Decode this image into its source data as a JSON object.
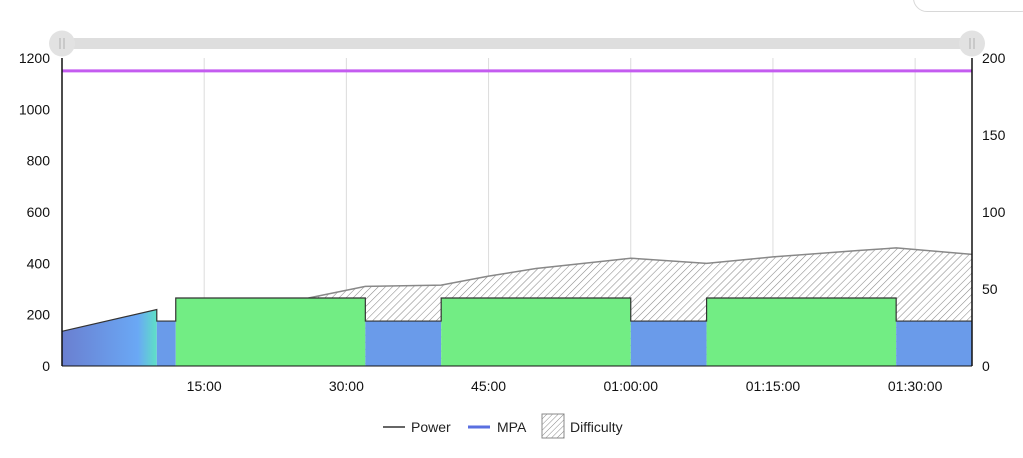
{
  "chart_data": {
    "type": "area",
    "x_unit": "seconds",
    "x_range": [
      0,
      5760
    ],
    "x_ticks": [
      {
        "value": 900,
        "label": "15:00"
      },
      {
        "value": 1800,
        "label": "30:00"
      },
      {
        "value": 2700,
        "label": "45:00"
      },
      {
        "value": 3600,
        "label": "01:00:00"
      },
      {
        "value": 4500,
        "label": "01:15:00"
      },
      {
        "value": 5400,
        "label": "01:30:00"
      }
    ],
    "y_left": {
      "range": [
        0,
        1200
      ],
      "ticks": [
        "0",
        "200",
        "400",
        "600",
        "800",
        "1000",
        "1200"
      ]
    },
    "y_right": {
      "range": [
        0,
        200
      ],
      "ticks": [
        "0",
        "50",
        "100",
        "150",
        "200"
      ]
    },
    "grid": "vertical",
    "legend_position": "bottom",
    "legend": [
      {
        "label": "Power",
        "swatch": "line",
        "color": "#333333"
      },
      {
        "label": "MPA",
        "swatch": "line",
        "color": "#5a6fe0"
      },
      {
        "label": "Difficulty",
        "swatch": "hatch",
        "color": "#888888"
      }
    ],
    "series": [
      {
        "name": "Power",
        "axis": "left",
        "segments": [
          {
            "x": [
              0,
              600
            ],
            "y": [
              135,
              220
            ],
            "style": "ramp"
          },
          {
            "x": [
              600,
              720
            ],
            "y": [
              175,
              175
            ],
            "style": "blue"
          },
          {
            "x": [
              720,
              1920
            ],
            "y": [
              265,
              265
            ],
            "style": "green"
          },
          {
            "x": [
              1920,
              2400
            ],
            "y": [
              175,
              175
            ],
            "style": "blue"
          },
          {
            "x": [
              2400,
              3600
            ],
            "y": [
              265,
              265
            ],
            "style": "green"
          },
          {
            "x": [
              3600,
              4080
            ],
            "y": [
              175,
              175
            ],
            "style": "blue"
          },
          {
            "x": [
              4080,
              5280
            ],
            "y": [
              265,
              265
            ],
            "style": "green"
          },
          {
            "x": [
              5280,
              5760
            ],
            "y": [
              175,
              175
            ],
            "style": "blue"
          }
        ]
      },
      {
        "name": "MPA",
        "axis": "left",
        "x": [
          0,
          5760
        ],
        "y": [
          1150,
          1150
        ]
      },
      {
        "name": "Difficulty",
        "axis": "left",
        "x": [
          1560,
          1920,
          2400,
          2700,
          3000,
          3600,
          4080,
          4500,
          5040,
          5280,
          5760
        ],
        "y": [
          265,
          310,
          315,
          350,
          380,
          420,
          400,
          425,
          450,
          460,
          435
        ]
      }
    ],
    "colors": {
      "ramp_start": "#6a7fd0",
      "ramp_mid": "#6aa8f5",
      "ramp_end": "#5ee0c6",
      "blue_block": "#6a9bea",
      "green_block": "#72ed84",
      "mpa_line": "#c45cf0",
      "difficulty_stroke": "#888888",
      "grid": "#dcdcdc",
      "axis": "#111111",
      "scrollbar_track": "#dedede",
      "scrollbar_handle": "#e2e2e2"
    }
  }
}
